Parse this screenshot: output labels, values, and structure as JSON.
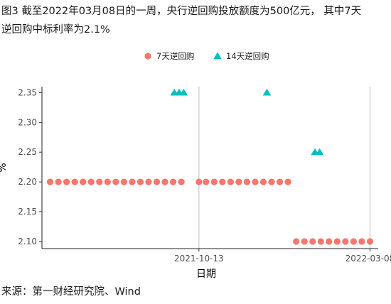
{
  "figure": {
    "title": "图3  截至2022年03月08日的一周，央行逆回购投放额度为500亿元，  其中7天逆回购中标利率为2.1%",
    "source": "来源：第一财经研究院、Wind"
  },
  "chart_data": {
    "type": "scatter",
    "title": "",
    "xlabel": "日期",
    "ylabel": "%",
    "x_ticks": [
      "2021-10-13",
      "2022-03-08"
    ],
    "xlim": [
      "2021-06-01",
      "2022-03-15"
    ],
    "ylim": [
      2.088,
      2.36
    ],
    "y_ticks": [
      2.1,
      2.15,
      2.2,
      2.25,
      2.3,
      2.35
    ],
    "y_tick_labels": [
      "2.10",
      "2.15",
      "2.20",
      "2.25",
      "2.30",
      "2.35"
    ],
    "grid": "vertical lines at x ticks",
    "legend_position": "top",
    "colors": {
      "seven_day": "#F8766D",
      "fourteen_day": "#00BFC4"
    },
    "series": [
      {
        "name": "7天逆回购",
        "marker": "circle",
        "color": "#F8766D",
        "x": [
          "2021-06-08",
          "2021-06-15",
          "2021-06-22",
          "2021-06-29",
          "2021-07-06",
          "2021-07-13",
          "2021-07-20",
          "2021-07-27",
          "2021-08-03",
          "2021-08-10",
          "2021-08-17",
          "2021-08-24",
          "2021-08-31",
          "2021-09-07",
          "2021-09-14",
          "2021-09-21",
          "2021-09-28",
          "2021-10-13",
          "2021-10-19",
          "2021-10-26",
          "2021-11-02",
          "2021-11-09",
          "2021-11-16",
          "2021-11-23",
          "2021-11-30",
          "2021-12-07",
          "2021-12-14",
          "2021-12-21",
          "2021-12-28",
          "2022-01-04",
          "2022-01-11",
          "2022-01-18",
          "2022-01-25",
          "2022-02-01",
          "2022-02-08",
          "2022-02-15",
          "2022-02-22",
          "2022-03-01",
          "2022-03-08"
        ],
        "values": [
          2.2,
          2.2,
          2.2,
          2.2,
          2.2,
          2.2,
          2.2,
          2.2,
          2.2,
          2.2,
          2.2,
          2.2,
          2.2,
          2.2,
          2.2,
          2.2,
          2.2,
          2.2,
          2.2,
          2.2,
          2.2,
          2.2,
          2.2,
          2.2,
          2.2,
          2.2,
          2.2,
          2.2,
          2.2,
          2.1,
          2.1,
          2.1,
          2.1,
          2.1,
          2.1,
          2.1,
          2.1,
          2.1,
          2.1
        ]
      },
      {
        "name": "14天逆回购",
        "marker": "triangle",
        "color": "#00BFC4",
        "x": [
          "2021-09-22",
          "2021-09-26",
          "2021-09-30",
          "2021-12-10",
          "2022-01-20",
          "2022-01-24"
        ],
        "values": [
          2.35,
          2.35,
          2.35,
          2.35,
          2.25,
          2.25
        ]
      }
    ]
  }
}
